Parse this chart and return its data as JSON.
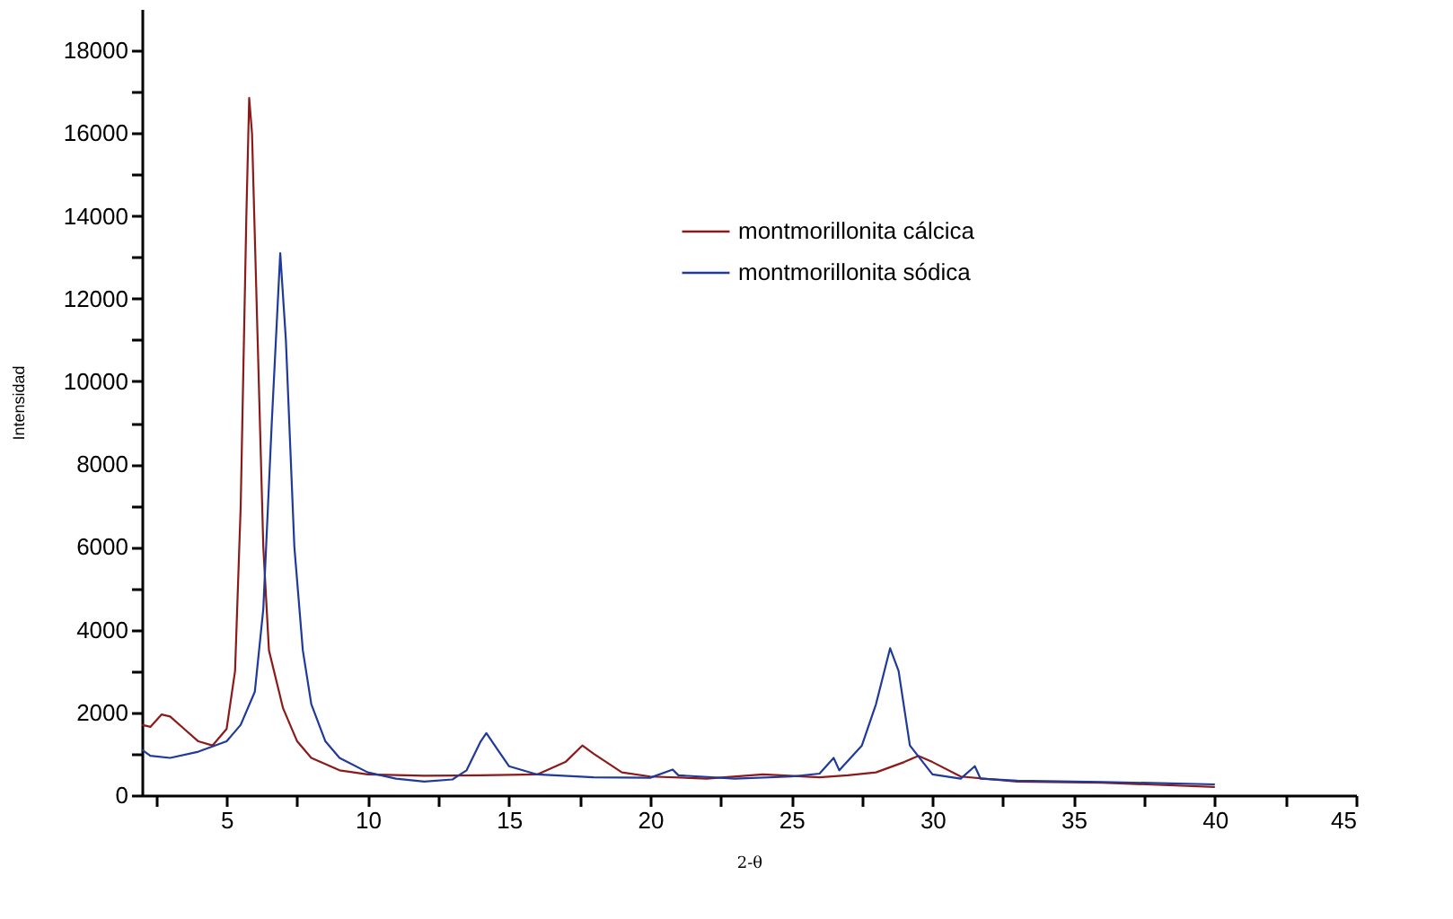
{
  "chart_data": {
    "type": "line",
    "xlabel": "2-θ",
    "ylabel": "Intensidad",
    "xlim": [
      2,
      45
    ],
    "ylim": [
      0,
      19000
    ],
    "xticks": [
      {
        "value": 2.5,
        "label": null
      },
      5,
      {
        "value": 7.5,
        "label": null
      },
      10,
      {
        "value": 12.5,
        "label": null
      },
      15,
      {
        "value": 17.5,
        "label": null
      },
      20,
      {
        "value": 22.5,
        "label": null
      },
      25,
      {
        "value": 27.5,
        "label": null
      },
      30,
      {
        "value": 32.5,
        "label": null
      },
      35,
      {
        "value": 37.5,
        "label": null
      },
      40,
      {
        "value": 42.5,
        "label": null
      },
      45
    ],
    "yticks": [
      0,
      {
        "value": 1000,
        "label": null
      },
      2000,
      {
        "value": 3000,
        "label": null
      },
      4000,
      {
        "value": 5000,
        "label": null
      },
      6000,
      {
        "value": 7000,
        "label": null
      },
      8000,
      {
        "value": 9000,
        "label": null
      },
      10000,
      {
        "value": 11000,
        "label": null
      },
      12000,
      {
        "value": 13000,
        "label": null
      },
      14000,
      {
        "value": 15000,
        "label": null
      },
      16000,
      {
        "value": 17000,
        "label": null
      },
      18000
    ],
    "grid": false,
    "legend": "top",
    "marker": "none",
    "line_style": "solid",
    "series": [
      {
        "name": "montmorillonita cálcica",
        "color": "#8b1a1a",
        "x": [
          2.0,
          2.3,
          2.7,
          3.0,
          3.5,
          4.0,
          4.5,
          5.0,
          5.3,
          5.5,
          5.7,
          5.8,
          5.9,
          6.1,
          6.3,
          6.5,
          7.0,
          7.5,
          8,
          9,
          10,
          12,
          14,
          16,
          17,
          17.6,
          18,
          19,
          20,
          22,
          24,
          26,
          27,
          28,
          29,
          29.5,
          30,
          31,
          33,
          36,
          40
        ],
        "values": [
          1700,
          1650,
          1950,
          1900,
          1600,
          1300,
          1200,
          1600,
          3000,
          7000,
          14000,
          16850,
          16000,
          11000,
          6000,
          3500,
          2100,
          1300,
          900,
          600,
          500,
          470,
          480,
          500,
          800,
          1200,
          1000,
          550,
          450,
          400,
          500,
          430,
          480,
          550,
          800,
          950,
          800,
          450,
          330,
          300,
          200
        ]
      },
      {
        "name": "montmorillonita sódica",
        "color": "#1f3a9a",
        "x": [
          2.0,
          2.3,
          3,
          4,
          5,
          5.5,
          6,
          6.3,
          6.6,
          6.9,
          7.1,
          7.4,
          7.7,
          8,
          8.5,
          9,
          10,
          11,
          12,
          13,
          13.5,
          14,
          14.2,
          14.6,
          15,
          16,
          18,
          20,
          20.8,
          21,
          23,
          25,
          26,
          26.5,
          26.7,
          27.5,
          28,
          28.5,
          28.8,
          29.2,
          30,
          31,
          31.5,
          31.7,
          33,
          36,
          40
        ],
        "values": [
          1100,
          950,
          900,
          1050,
          1300,
          1700,
          2500,
          4500,
          9000,
          13100,
          11000,
          6000,
          3500,
          2200,
          1300,
          900,
          550,
          400,
          330,
          380,
          600,
          1300,
          1500,
          1100,
          700,
          500,
          430,
          420,
          620,
          480,
          400,
          450,
          520,
          900,
          600,
          1200,
          2200,
          3550,
          3000,
          1200,
          500,
          400,
          700,
          400,
          350,
          320,
          260
        ]
      }
    ]
  }
}
